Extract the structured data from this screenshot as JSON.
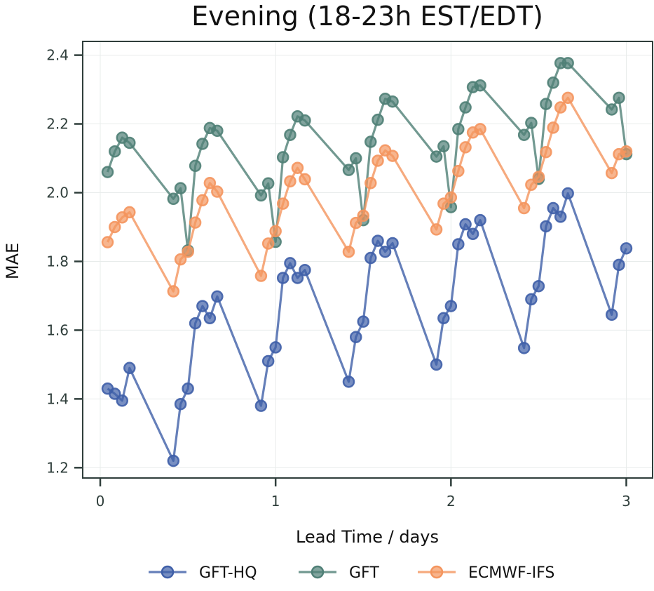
{
  "chart_data": {
    "type": "line",
    "title": "Evening (18-23h EST/EDT)",
    "xlabel": "Lead Time / days",
    "ylabel": "MAE",
    "xlim": [
      -0.1,
      3.15
    ],
    "ylim": [
      1.17,
      2.44
    ],
    "xticks": [
      0,
      1,
      2,
      3
    ],
    "xtick_labels": [
      "0",
      "1",
      "2",
      "3"
    ],
    "yticks": [
      1.2,
      1.4,
      1.6,
      1.8,
      2.0,
      2.2,
      2.4
    ],
    "ytick_labels": [
      "1.2",
      "1.4",
      "1.6",
      "1.8",
      "2.0",
      "2.2",
      "2.4"
    ],
    "grid": true,
    "legend_position": "bottom-center",
    "x": [
      0.042,
      0.083,
      0.125,
      0.167,
      0.417,
      0.458,
      0.5,
      0.542,
      0.583,
      0.625,
      0.667,
      0.917,
      0.958,
      1.0,
      1.042,
      1.083,
      1.125,
      1.167,
      1.417,
      1.458,
      1.5,
      1.542,
      1.583,
      1.625,
      1.667,
      1.917,
      1.958,
      2.0,
      2.042,
      2.083,
      2.125,
      2.167,
      2.417,
      2.458,
      2.5,
      2.542,
      2.583,
      2.625,
      2.667,
      2.917,
      2.958,
      3.0
    ],
    "series": [
      {
        "name": "GFT-HQ",
        "color": "#3f5fa8",
        "values": [
          1.43,
          1.415,
          1.395,
          1.49,
          1.22,
          1.385,
          1.43,
          1.62,
          1.67,
          1.635,
          1.698,
          1.38,
          1.51,
          1.55,
          1.752,
          1.795,
          1.752,
          1.775,
          1.45,
          1.58,
          1.625,
          1.81,
          1.86,
          1.828,
          1.853,
          1.5,
          1.635,
          1.67,
          1.85,
          1.908,
          1.88,
          1.92,
          1.548,
          1.69,
          1.728,
          1.902,
          1.955,
          1.93,
          1.998,
          1.645,
          1.79,
          1.838
        ]
      },
      {
        "name": "GFT",
        "color": "#4f7f76",
        "values": [
          2.06,
          2.12,
          2.16,
          2.145,
          1.982,
          2.013,
          1.832,
          2.078,
          2.142,
          2.188,
          2.18,
          1.992,
          2.027,
          1.857,
          2.103,
          2.168,
          2.222,
          2.21,
          2.066,
          2.1,
          1.92,
          2.148,
          2.212,
          2.273,
          2.265,
          2.105,
          2.135,
          1.958,
          2.185,
          2.248,
          2.307,
          2.312,
          2.168,
          2.203,
          2.04,
          2.258,
          2.32,
          2.377,
          2.377,
          2.242,
          2.276,
          2.112
        ]
      },
      {
        "name": "ECMWF-IFS",
        "color": "#f4955e",
        "values": [
          1.856,
          1.9,
          1.928,
          1.943,
          1.713,
          1.806,
          1.828,
          1.913,
          1.978,
          2.028,
          2.003,
          1.758,
          1.852,
          1.888,
          1.968,
          2.033,
          2.072,
          2.039,
          1.828,
          1.912,
          1.933,
          2.028,
          2.093,
          2.123,
          2.107,
          1.893,
          1.968,
          1.986,
          2.063,
          2.132,
          2.175,
          2.185,
          1.955,
          2.023,
          2.046,
          2.118,
          2.189,
          2.248,
          2.276,
          2.057,
          2.112,
          2.12
        ]
      }
    ]
  }
}
